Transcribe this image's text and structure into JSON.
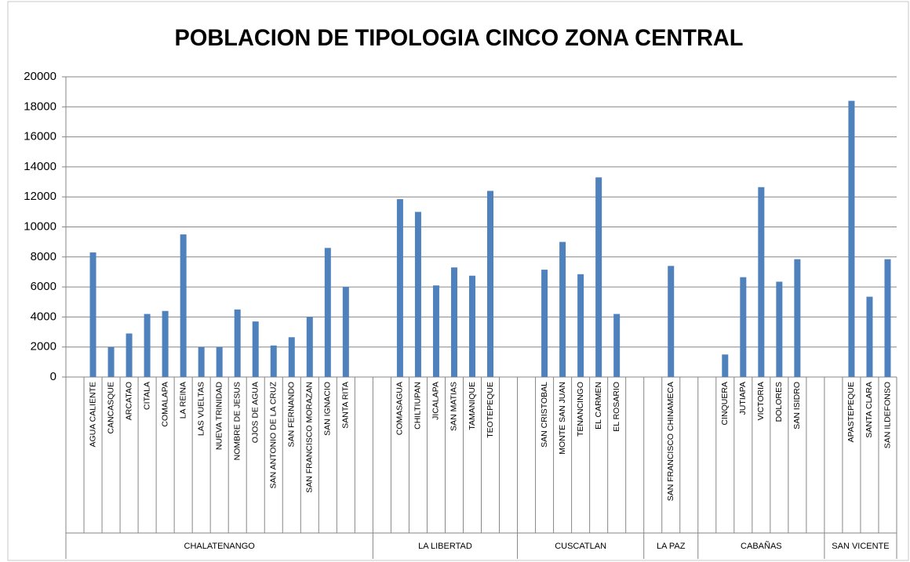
{
  "chart_data": {
    "type": "bar",
    "title": "POBLACION DE TIPOLOGIA CINCO ZONA CENTRAL",
    "color": "#4f81bd",
    "grid": true,
    "ylim": [
      0,
      20000
    ],
    "yticks": [
      0,
      2000,
      4000,
      6000,
      8000,
      10000,
      12000,
      14000,
      16000,
      18000,
      20000
    ],
    "groups": [
      {
        "name": "CHALATENANGO",
        "categories": [
          null,
          "AGUA CALIENTE",
          "CANCASQUE",
          "ARCATAO",
          "CITALA",
          "COMALAPA",
          "LA REINA",
          "LAS VUELTAS",
          "NUEVA TRINIDAD",
          "NOMBRE DE JESUS",
          "OJOS DE AGUA",
          "SAN ANTONIO DE LA CRUZ",
          "SAN FERNANDO",
          "SAN FRANCISCO MORAZAN",
          "SAN IGNACIO",
          "SANTA RITA",
          null
        ],
        "values": [
          null,
          8300,
          2000,
          2900,
          4200,
          4400,
          9500,
          2000,
          2000,
          4500,
          3700,
          2100,
          2650,
          4000,
          8600,
          6000,
          null
        ]
      },
      {
        "name": "LA LIBERTAD",
        "categories": [
          null,
          "COMASAGUA",
          "CHILTIUPAN",
          "JICALAPA",
          "SAN MATIAS",
          "TAMANIQUE",
          "TEOTEPEQUE",
          null
        ],
        "values": [
          null,
          11850,
          11000,
          6100,
          7300,
          6750,
          12400,
          null
        ]
      },
      {
        "name": "CUSCATLAN",
        "categories": [
          null,
          "SAN CRISTOBAL",
          "MONTE SAN JUAN",
          "TENANCINGO",
          "EL CARMEN",
          "EL ROSARIO",
          null
        ],
        "values": [
          null,
          7150,
          9000,
          6850,
          13300,
          4200,
          null
        ]
      },
      {
        "name": "LA PAZ",
        "categories": [
          null,
          "SAN FRANCISCO CHINAMECA",
          null
        ],
        "values": [
          null,
          7400,
          null
        ]
      },
      {
        "name": "CABAÑAS",
        "categories": [
          null,
          "CINQUERA",
          "JUTIAPA",
          "VICTORIA",
          "DOLORES",
          "SAN ISIDRO",
          null
        ],
        "values": [
          null,
          1500,
          6650,
          12650,
          6350,
          7850,
          null
        ]
      },
      {
        "name": "SAN VICENTE",
        "categories": [
          null,
          "APASTEPEQUE",
          "SANTA CLARA",
          "SAN ILDEFONSO"
        ],
        "values": [
          null,
          18400,
          5350,
          7850
        ]
      }
    ]
  }
}
